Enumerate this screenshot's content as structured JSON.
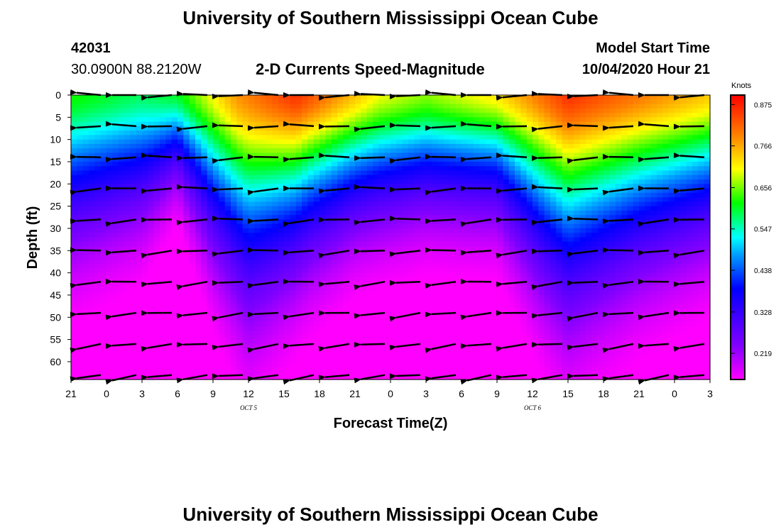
{
  "header": {
    "title": "University of Southern Mississippi Ocean Cube",
    "station_id": "42031",
    "station_coords": "30.0900N 88.2120W",
    "chart_title": "2-D Currents Speed-Magnitude",
    "model_start_label": "Model Start Time",
    "model_start_value": "10/04/2020 Hour 21"
  },
  "footer": {
    "title": "University of Southern Mississippi Ocean Cube"
  },
  "chart_data": {
    "type": "heatmap",
    "title": "2-D Currents Speed-Magnitude",
    "xlabel": "Forecast Time(Z)",
    "ylabel": "Depth (ft)",
    "x_tick_labels": [
      "21",
      "0",
      "3",
      "6",
      "9",
      "12",
      "15",
      "18",
      "21",
      "0",
      "3",
      "6",
      "9",
      "12",
      "15",
      "18",
      "21",
      "0",
      "3"
    ],
    "x_date_labels": [
      {
        "label": "OCT 5",
        "at_hour": 15
      },
      {
        "label": "OCT 6",
        "at_hour": 39
      }
    ],
    "x_range_hours": [
      0,
      54
    ],
    "y_ticks": [
      0,
      5,
      10,
      15,
      20,
      25,
      30,
      35,
      40,
      45,
      50,
      55,
      60
    ],
    "y_range_ft": [
      0,
      64
    ],
    "colorbar": {
      "unit": "Knots",
      "ticks": [
        0.875,
        0.766,
        0.656,
        0.547,
        0.438,
        0.328,
        0.219
      ],
      "range": [
        0.15,
        0.9
      ]
    },
    "depth_levels_ft": [
      0,
      7,
      14,
      21,
      28,
      35,
      42,
      49,
      56,
      63
    ],
    "arrow_times_hours": [
      1.5,
      4.5,
      7.5,
      10.5,
      13.5,
      16.5,
      19.5,
      22.5,
      25.5,
      28.5,
      31.5,
      34.5,
      37.5,
      40.5,
      43.5,
      46.5,
      49.5,
      52.5
    ],
    "speed_profile": {
      "surface_knots": [
        {
          "hour": 0,
          "value": 0.62
        },
        {
          "hour": 6,
          "value": 0.58
        },
        {
          "hour": 9,
          "value": 0.6
        },
        {
          "hour": 14,
          "value": 0.78
        },
        {
          "hour": 19,
          "value": 0.86
        },
        {
          "hour": 26,
          "value": 0.7
        },
        {
          "hour": 30,
          "value": 0.66
        },
        {
          "hour": 36,
          "value": 0.72
        },
        {
          "hour": 42,
          "value": 0.86
        },
        {
          "hour": 48,
          "value": 0.8
        },
        {
          "hour": 54,
          "value": 0.74
        }
      ],
      "gradient_scale_ft": [
        {
          "hour": 0,
          "value": 26
        },
        {
          "hour": 6,
          "value": 22
        },
        {
          "hour": 9,
          "value": 15
        },
        {
          "hour": 12,
          "value": 26
        },
        {
          "hour": 15,
          "value": 34
        },
        {
          "hour": 20,
          "value": 26
        },
        {
          "hour": 24,
          "value": 22
        },
        {
          "hour": 30,
          "value": 20
        },
        {
          "hour": 36,
          "value": 20
        },
        {
          "hour": 40,
          "value": 30
        },
        {
          "hour": 42,
          "value": 34
        },
        {
          "hour": 48,
          "value": 28
        },
        {
          "hour": 54,
          "value": 24
        }
      ]
    }
  }
}
